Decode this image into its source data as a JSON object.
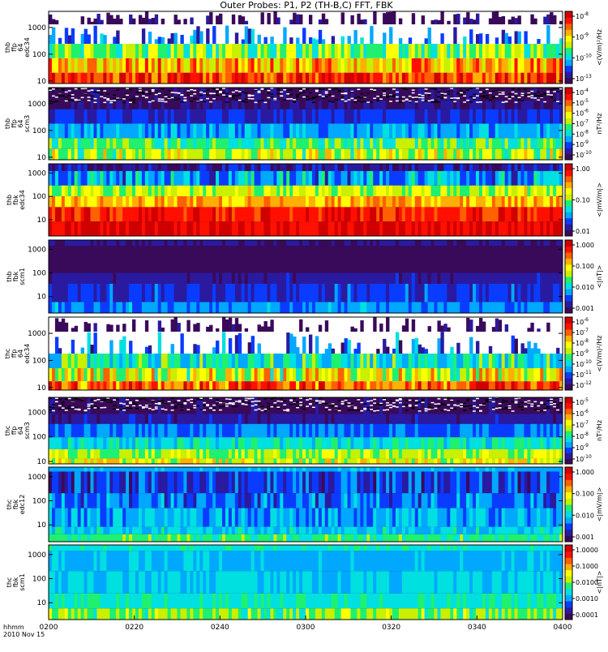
{
  "title": "Outer Probes: P1, P2 (TH-B,C) FFT, FBK",
  "colors": {
    "colormap": [
      "#3a0a5a",
      "#2a1aa0",
      "#0a3cff",
      "#00a8ff",
      "#00e0e0",
      "#20f070",
      "#c8f000",
      "#ffff00",
      "#ffb000",
      "#ff6000",
      "#ff1000",
      "#d00000"
    ]
  },
  "chart_data": {
    "type": "heatmap",
    "xlabel_lines": [
      "hhmm",
      "2010 Nov 15"
    ],
    "x_ticks": [
      "0200",
      "0220",
      "0240",
      "0300",
      "0320",
      "0340",
      "0400"
    ],
    "x_range": [
      "0200",
      "0400"
    ],
    "y_scale": "log",
    "panels": [
      {
        "ylabel_lines": [
          "thb",
          "ffp",
          "64",
          "edc34"
        ],
        "y_ticks": [
          "1000",
          "100",
          "10"
        ],
        "ylim": [
          8,
          4000
        ],
        "colorbar_label": "<(V/m)²/Hz",
        "colorbar_ticks": [
          {
            "base": "10",
            "exp": "-8"
          },
          {
            "base": "10",
            "exp": "-9"
          },
          {
            "base": "10",
            "exp": "-10"
          },
          {
            "base": "10",
            "exp": "-13"
          }
        ],
        "pattern": "efi_ffp"
      },
      {
        "ylabel_lines": [
          "thb",
          "ffp",
          "64",
          "scm3"
        ],
        "y_ticks": [
          "1000",
          "100",
          "10"
        ],
        "ylim": [
          8,
          4000
        ],
        "colorbar_label": "nT²/Hz",
        "colorbar_ticks": [
          {
            "base": "10",
            "exp": "-4"
          },
          {
            "base": "10",
            "exp": "-5"
          },
          {
            "base": "10",
            "exp": "-6"
          },
          {
            "base": "10",
            "exp": "-7"
          },
          {
            "base": "10",
            "exp": "-8"
          },
          {
            "base": "10",
            "exp": "-9"
          },
          {
            "base": "10",
            "exp": "-10"
          }
        ],
        "pattern": "scm_ffp"
      },
      {
        "ylabel_lines": [
          "thb",
          "fbk",
          "edc34"
        ],
        "y_ticks": [
          "1000",
          "100",
          "10"
        ],
        "ylim": [
          2,
          2500
        ],
        "colorbar_label": "<|mV/m|>",
        "colorbar_ticks": [
          {
            "text": "1.00"
          },
          {
            "text": "0.10"
          },
          {
            "text": "0.01"
          }
        ],
        "pattern": "efi_fbk"
      },
      {
        "ylabel_lines": [
          "thb",
          "fbk",
          "scm1"
        ],
        "y_ticks": [
          "1000",
          "100",
          "10"
        ],
        "ylim": [
          2,
          2500
        ],
        "colorbar_label": "<|nT|>",
        "colorbar_ticks": [
          {
            "text": "1.000"
          },
          {
            "text": "0.100"
          },
          {
            "text": "0.010"
          },
          {
            "text": "0.001"
          }
        ],
        "pattern": "scm_fbk_dark"
      },
      {
        "ylabel_lines": [
          "thc",
          "ffp",
          "64",
          "edc34"
        ],
        "y_ticks": [
          "1000",
          "100",
          "10"
        ],
        "ylim": [
          8,
          4000
        ],
        "colorbar_label": "<(V/m)²/Hz",
        "colorbar_ticks": [
          {
            "base": "10",
            "exp": "-6"
          },
          {
            "base": "10",
            "exp": "-7"
          },
          {
            "base": "10",
            "exp": "-8"
          },
          {
            "base": "10",
            "exp": "-9"
          },
          {
            "base": "10",
            "exp": "-10"
          },
          {
            "base": "10",
            "exp": "-11"
          },
          {
            "base": "10",
            "exp": "-12"
          }
        ],
        "pattern": "efi_ffp_c"
      },
      {
        "ylabel_lines": [
          "thc",
          "ffp",
          "64",
          "scm3"
        ],
        "y_ticks": [
          "1000",
          "100",
          "10"
        ],
        "ylim": [
          8,
          4000
        ],
        "colorbar_label": "nT²/Hz",
        "colorbar_ticks": [
          {
            "base": "10",
            "exp": "-5"
          },
          {
            "base": "10",
            "exp": "-6"
          },
          {
            "base": "10",
            "exp": "-7"
          },
          {
            "base": "10",
            "exp": "-8"
          },
          {
            "base": "10",
            "exp": "-9"
          },
          {
            "base": "10",
            "exp": "-10"
          }
        ],
        "pattern": "scm_ffp_c"
      },
      {
        "ylabel_lines": [
          "thc",
          "fbk",
          "edc12"
        ],
        "y_ticks": [
          "1000",
          "100",
          "10"
        ],
        "ylim": [
          2,
          2500
        ],
        "colorbar_label": "<|mV/m|>",
        "colorbar_ticks": [
          {
            "text": "1.000"
          },
          {
            "text": "0.100"
          },
          {
            "text": "0.010"
          },
          {
            "text": "0.001"
          }
        ],
        "pattern": "efi_fbk_c"
      },
      {
        "ylabel_lines": [
          "thc",
          "fbk",
          "scm1"
        ],
        "y_ticks": [
          "1000",
          "100",
          "10"
        ],
        "ylim": [
          2,
          2500
        ],
        "colorbar_label": "<|nT|>",
        "colorbar_ticks": [
          {
            "text": "1.0000"
          },
          {
            "text": "0.1000"
          },
          {
            "text": "0.0100"
          },
          {
            "text": "0.0010"
          },
          {
            "text": "0.0001"
          }
        ],
        "pattern": "scm_fbk_c"
      }
    ]
  }
}
